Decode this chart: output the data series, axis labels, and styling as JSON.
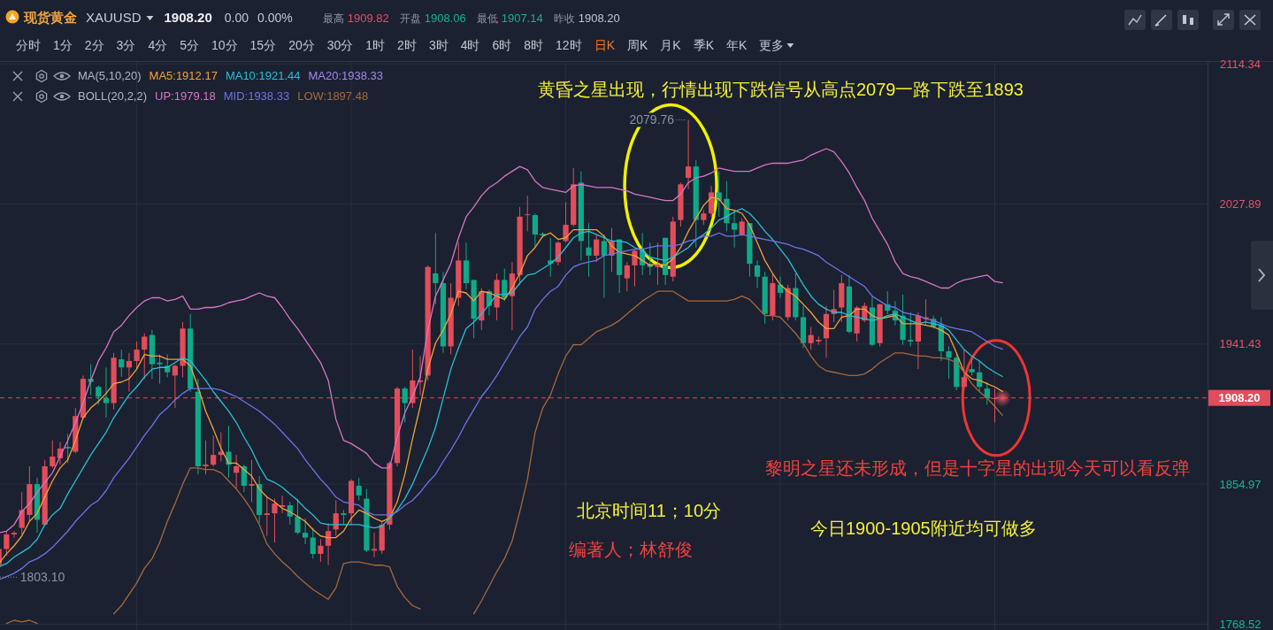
{
  "chart_data": {
    "type": "candlestick",
    "title": "现货黄金",
    "subtitle": "XAUUSD",
    "categories": [
      null,
      null,
      null,
      null,
      null,
      null,
      null,
      null,
      null,
      null,
      null,
      null,
      null,
      null,
      null,
      null,
      null,
      null,
      null,
      null,
      null,
      null,
      null,
      null,
      null,
      null,
      null,
      null,
      null,
      null,
      null,
      null,
      null,
      null,
      null,
      null,
      null,
      null,
      null,
      null,
      null,
      null,
      null,
      null,
      null,
      null,
      null,
      null,
      null,
      null,
      null,
      null,
      null,
      null,
      null,
      null,
      null,
      null,
      null,
      null,
      null,
      null,
      null,
      null,
      null,
      null,
      null,
      null,
      null,
      null,
      null,
      null,
      null,
      null,
      null,
      null,
      null,
      null,
      null,
      null,
      null,
      null,
      null,
      null,
      null,
      null,
      null,
      null,
      null,
      null,
      null,
      null,
      null,
      null,
      null,
      null,
      null,
      null,
      null,
      null,
      null,
      null,
      null,
      null,
      null,
      null,
      null,
      null,
      null,
      null,
      null,
      null,
      null,
      null,
      null,
      null,
      null,
      null,
      null,
      null,
      null,
      null,
      null,
      null,
      null,
      null,
      null,
      null,
      null,
      null,
      null,
      null
    ],
    "ohlc": [
      [
        1805,
        1816,
        1803.1,
        1815
      ],
      [
        1815,
        1826,
        1811,
        1824
      ],
      [
        1824,
        1826,
        1822,
        1825
      ],
      [
        1828,
        1850,
        1824,
        1839
      ],
      [
        1836,
        1866,
        1832,
        1855
      ],
      [
        1855,
        1859,
        1825,
        1833
      ],
      [
        1830,
        1870,
        1829,
        1866
      ],
      [
        1866,
        1882,
        1865,
        1872
      ],
      [
        1871,
        1881,
        1867,
        1877
      ],
      [
        1878,
        1886,
        1868,
        1877
      ],
      [
        1875,
        1902,
        1874,
        1897
      ],
      [
        1896,
        1922,
        1895,
        1920
      ],
      [
        1920,
        1929,
        1910,
        1918
      ],
      [
        1915,
        1916,
        1904,
        1909
      ],
      [
        1908,
        1927,
        1896,
        1905
      ],
      [
        1905,
        1936,
        1901,
        1933
      ],
      [
        1932,
        1938,
        1921,
        1927
      ],
      [
        1927,
        1936,
        1912,
        1931
      ],
      [
        1931,
        1943,
        1926,
        1938
      ],
      [
        1938,
        1948,
        1920,
        1946
      ],
      [
        1947,
        1950,
        1920,
        1929
      ],
      [
        1930,
        1935,
        1917,
        1929
      ],
      [
        1928,
        1935,
        1921,
        1924
      ],
      [
        1922,
        1929,
        1902,
        1928
      ],
      [
        1928,
        1955,
        1921,
        1951
      ],
      [
        1951,
        1960,
        1912,
        1914
      ],
      [
        1912,
        1920,
        1861,
        1866
      ],
      [
        1866,
        1882,
        1861,
        1867
      ],
      [
        1867,
        1885,
        1866,
        1873
      ],
      [
        1873,
        1887,
        1869,
        1875
      ],
      [
        1875,
        1891,
        1859,
        1867
      ],
      [
        1862,
        1873,
        1852,
        1866
      ],
      [
        1866,
        1867,
        1850,
        1854
      ],
      [
        1854,
        1870,
        1844,
        1855
      ],
      [
        1855,
        1860,
        1831,
        1836
      ],
      [
        1836,
        1847,
        1823,
        1837
      ],
      [
        1837,
        1846,
        1819,
        1843
      ],
      [
        1841,
        1848,
        1837,
        1842
      ],
      [
        1842,
        1844,
        1830,
        1835
      ],
      [
        1835,
        1846,
        1824,
        1825
      ],
      [
        1825,
        1834,
        1818,
        1822
      ],
      [
        1822,
        1828,
        1809,
        1812
      ],
      [
        1812,
        1821,
        1807,
        1817
      ],
      [
        1817,
        1831,
        1805,
        1826
      ],
      [
        1827,
        1845,
        1823,
        1837
      ],
      [
        1837,
        1839,
        1830,
        1836
      ],
      [
        1837,
        1858,
        1830,
        1857
      ],
      [
        1854,
        1859,
        1845,
        1848
      ],
      [
        1846,
        1852,
        1813,
        1814
      ],
      [
        1814,
        1825,
        1810,
        1815
      ],
      [
        1814,
        1832,
        1812,
        1830
      ],
      [
        1830,
        1869,
        1827,
        1868
      ],
      [
        1868,
        1915,
        1866,
        1914
      ],
      [
        1914,
        1915,
        1893,
        1905
      ],
      [
        1905,
        1938,
        1902,
        1919
      ],
      [
        1918,
        1934,
        1910,
        1919
      ],
      [
        1922,
        1990,
        1919,
        1989
      ],
      [
        1985,
        2010,
        1966,
        1979
      ],
      [
        1979,
        1986,
        1936,
        1940
      ],
      [
        1940,
        1979,
        1935,
        1970
      ],
      [
        1970,
        2004,
        1965,
        1993
      ],
      [
        1993,
        2004,
        1975,
        1979
      ],
      [
        1981,
        1981,
        1945,
        1957
      ],
      [
        1956,
        1976,
        1950,
        1974
      ],
      [
        1974,
        1975,
        1959,
        1965
      ],
      [
        1964,
        1985,
        1956,
        1981
      ],
      [
        1981,
        1988,
        1968,
        1970
      ],
      [
        1971,
        1992,
        1950,
        1985
      ],
      [
        1984,
        2026,
        1978,
        2020
      ],
      [
        2021,
        2033,
        2011,
        2021.5
      ],
      [
        2021,
        2022,
        2001,
        2009
      ],
      [
        2009.5,
        2010.5,
        2007,
        2008.5
      ],
      [
        1993,
        2007,
        1983,
        1991
      ],
      [
        1992,
        2005,
        1990,
        2004
      ],
      [
        2005,
        2029,
        2004,
        2015
      ],
      [
        2015,
        2050,
        2014,
        2040
      ],
      [
        2041,
        2048,
        1993,
        2005
      ],
      [
        2001,
        2016,
        1983,
        1996
      ],
      [
        1996,
        2009,
        1992,
        2006
      ],
      [
        2005,
        2009,
        1970,
        1996
      ],
      [
        1996,
        2013,
        1986,
        2005
      ],
      [
        2006,
        2006,
        1973,
        1984
      ],
      [
        1982,
        1992,
        1974,
        1990
      ],
      [
        1990,
        2000,
        1977,
        1999
      ],
      [
        1999,
        2010,
        1984,
        1990
      ],
      [
        1991,
        2004,
        1984,
        1989
      ],
      [
        1989,
        2004,
        1978,
        1991
      ],
      [
        2007,
        2007,
        1978,
        1984
      ],
      [
        1983,
        2020,
        1980,
        2017
      ],
      [
        2018,
        2041,
        2014,
        2040
      ],
      [
        2044,
        2079.76,
        2037,
        2051
      ],
      [
        2051,
        2055,
        2001,
        2018
      ],
      [
        2018,
        2024,
        2015,
        2022
      ],
      [
        2022,
        2039,
        2020,
        2035
      ],
      [
        2035,
        2048,
        2020,
        2030
      ],
      [
        2031,
        2042,
        2011,
        2016
      ],
      [
        2016,
        2024,
        2001,
        2012
      ],
      [
        2009,
        2019,
        2008,
        2017
      ],
      [
        2016,
        2016,
        1983,
        1991
      ],
      [
        1990,
        1993,
        1976,
        1983
      ],
      [
        1983,
        1986,
        1954,
        1960
      ],
      [
        1959,
        1985,
        1956,
        1979
      ],
      [
        1978,
        1983,
        1970,
        1973
      ],
      [
        1958,
        1978,
        1956,
        1976
      ],
      [
        1976,
        1985,
        1956,
        1958
      ],
      [
        1958,
        1965,
        1939,
        1942
      ],
      [
        1942,
        1952,
        1938,
        1947
      ],
      [
        1943,
        1946,
        1941,
        1944
      ],
      [
        1945,
        1965,
        1933,
        1960
      ],
      [
        1960,
        1975,
        1955,
        1963
      ],
      [
        1964,
        1984,
        1955,
        1979
      ],
      [
        1977,
        1984,
        1948,
        1949
      ],
      [
        1948,
        1965,
        1943,
        1964
      ],
      [
        1956,
        1967,
        1955,
        1965
      ],
      [
        1964,
        1971,
        1940,
        1941
      ],
      [
        1942,
        1966,
        1940,
        1966
      ],
      [
        1966,
        1974,
        1960,
        1962
      ],
      [
        1962,
        1968,
        1953,
        1956
      ],
      [
        1959,
        1972,
        1941,
        1944
      ],
      [
        1944,
        1961,
        1940,
        1943
      ],
      [
        1943,
        1961,
        1926,
        1959
      ],
      [
        1957,
        1969,
        1953,
        1958
      ],
      [
        1957,
        1959,
        1951,
        1952
      ],
      [
        1953,
        1958,
        1931,
        1937
      ],
      [
        1937,
        1940,
        1920,
        1933
      ],
      [
        1933,
        1935,
        1913,
        1915
      ],
      [
        1915,
        1938,
        1913,
        1921
      ],
      [
        1926,
        1934,
        1922,
        1924
      ],
      [
        1924,
        1931,
        1912,
        1915
      ],
      [
        1914,
        1918,
        1904,
        1908
      ],
      [
        1907.5,
        1914,
        1893,
        1908.2
      ],
      [
        1908.06,
        1909.82,
        1907.14,
        1908.2
      ]
    ],
    "colors": [
      "#e34d5b",
      "#e34d5b",
      "#e34d5b",
      "#e34d5b",
      "#e34d5b",
      "#0fa98a",
      "#e34d5b",
      "#e34d5b",
      "#e34d5b",
      "#0fa98a",
      "#e34d5b",
      "#e34d5b",
      "#0fa98a",
      "#0fa98a",
      "#0fa98a",
      "#e34d5b",
      "#0fa98a",
      "#e34d5b",
      "#e34d5b",
      "#e34d5b",
      "#0fa98a",
      "#0fa98a",
      "#0fa98a",
      "#e34d5b",
      "#e34d5b",
      "#0fa98a",
      "#0fa98a",
      "#e34d5b",
      "#e34d5b",
      "#e34d5b",
      "#0fa98a",
      "#e34d5b",
      "#0fa98a",
      "#e34d5b",
      "#0fa98a",
      "#e34d5b",
      "#e34d5b",
      "#e34d5b",
      "#0fa98a",
      "#0fa98a",
      "#0fa98a",
      "#0fa98a",
      "#e34d5b",
      "#e34d5b",
      "#e34d5b",
      "#0fa98a",
      "#e34d5b",
      "#0fa98a",
      "#0fa98a",
      "#e34d5b",
      "#e34d5b",
      "#e34d5b",
      "#e34d5b",
      "#0fa98a",
      "#e34d5b",
      "#e34d5b",
      "#e34d5b",
      "#0fa98a",
      "#0fa98a",
      "#e34d5b",
      "#e34d5b",
      "#0fa98a",
      "#0fa98a",
      "#e34d5b",
      "#0fa98a",
      "#e34d5b",
      "#0fa98a",
      "#e34d5b",
      "#e34d5b",
      "#e34d5b",
      "#0fa98a",
      "#0fa98a",
      "#0fa98a",
      "#e34d5b",
      "#e34d5b",
      "#e34d5b",
      "#0fa98a",
      "#0fa98a",
      "#e34d5b",
      "#0fa98a",
      "#e34d5b",
      "#0fa98a",
      "#e34d5b",
      "#e34d5b",
      "#0fa98a",
      "#0fa98a",
      "#e34d5b",
      "#0fa98a",
      "#e34d5b",
      "#e34d5b",
      "#e34d5b",
      "#0fa98a",
      "#e34d5b",
      "#e34d5b",
      "#0fa98a",
      "#0fa98a",
      "#0fa98a",
      "#e34d5b",
      "#0fa98a",
      "#0fa98a",
      "#0fa98a",
      "#e34d5b",
      "#0fa98a",
      "#e34d5b",
      "#0fa98a",
      "#0fa98a",
      "#e34d5b",
      "#e34d5b",
      "#e34d5b",
      "#e34d5b",
      "#e34d5b",
      "#0fa98a",
      "#e34d5b",
      "#e34d5b",
      "#0fa98a",
      "#e34d5b",
      "#0fa98a",
      "#0fa98a",
      "#0fa98a",
      "#0fa98a",
      "#e34d5b",
      "#e34d5b",
      "#0fa98a",
      "#0fa98a",
      "#0fa98a",
      "#0fa98a",
      "#e34d5b",
      "#0fa98a",
      "#0fa98a",
      "#0fa98a",
      "#e34d5b",
      "#e34d5b"
    ],
    "series": [
      {
        "type": "line",
        "name": "MA5:1912.17",
        "color": "#f5a038",
        "values": [
          1806,
          1812,
          1817,
          1823,
          1832,
          1837,
          1847,
          1857,
          1865,
          1870,
          1882,
          1896,
          1902,
          1906,
          1911,
          1917,
          1918,
          1920,
          1926,
          1935,
          1934,
          1934,
          1932,
          1932,
          1932,
          1928,
          1915,
          1900,
          1889,
          1877,
          1868,
          1868,
          1864,
          1860,
          1852,
          1847,
          1844,
          1840,
          1838,
          1835,
          1832,
          1827,
          1823,
          1822,
          1822,
          1826,
          1834,
          1839,
          1837,
          1834,
          1832,
          1834,
          1844,
          1861,
          1883,
          1903,
          1926,
          1942,
          1950,
          1960,
          1974,
          1973,
          1968,
          1974,
          1973,
          1971,
          1969,
          1976,
          1985,
          1996,
          2001,
          2008,
          2010,
          2006,
          2007,
          2012,
          2012,
          2012,
          2012,
          2008,
          2002,
          1998,
          1997,
          1996,
          1993,
          1990,
          1991,
          1990,
          1994,
          2001,
          2011,
          2019,
          2027,
          2032,
          2031,
          2025,
          2024,
          2022,
          2015,
          2004,
          1993,
          1985,
          1978,
          1974,
          1971,
          1966,
          1961,
          1955,
          1951,
          1951,
          1958,
          1959,
          1963,
          1963,
          1959,
          1957,
          1958,
          1959,
          1954,
          1954,
          1954,
          1953,
          1952,
          1950,
          1947,
          1936,
          1924,
          1920,
          1919,
          1917,
          1915,
          1912.17
        ]
      },
      {
        "type": "line",
        "name": "MA10:1921.44",
        "color": "#29bfd6",
        "values": [
          1804,
          1806,
          1810,
          1813,
          1816,
          1821,
          1830,
          1836,
          1840,
          1849,
          1857,
          1865,
          1873,
          1880,
          1887,
          1896,
          1903,
          1910,
          1915,
          1921,
          1926,
          1927,
          1927,
          1930,
          1933,
          1931,
          1925,
          1919,
          1912,
          1906,
          1900,
          1893,
          1884,
          1876,
          1866,
          1858,
          1856,
          1853,
          1849,
          1845,
          1840,
          1836,
          1831,
          1830,
          1830,
          1830,
          1830,
          1830,
          1829,
          1828,
          1829,
          1834,
          1839,
          1846,
          1855,
          1866,
          1877,
          1890,
          1908,
          1926,
          1939,
          1951,
          1955,
          1960,
          1966,
          1972,
          1972,
          1973,
          1979,
          1984,
          1985,
          1988,
          1991,
          1995,
          2001,
          2007,
          2010,
          2011,
          2009,
          2007,
          2005,
          2005,
          2004,
          2001,
          1999,
          1995,
          1994,
          1993,
          1995,
          1998,
          2001,
          2006,
          2009,
          2013,
          2018,
          2020,
          2023,
          2025,
          2022,
          2017,
          2011,
          2006,
          2000,
          1994,
          1986,
          1978,
          1971,
          1966,
          1963,
          1961,
          1961,
          1959,
          1958,
          1957,
          1956,
          1957,
          1959,
          1960,
          1958,
          1956,
          1954,
          1955,
          1954,
          1953,
          1950,
          1944,
          1938,
          1934,
          1931,
          1927,
          1924,
          1921.44
        ]
      },
      {
        "type": "line",
        "name": "UP:1979.18",
        "color": "#d874c9",
        "values": [
          1825,
          1826,
          1830,
          1838,
          1843,
          1850,
          1856,
          1862,
          1872,
          1882,
          1893,
          1905,
          1919,
          1931,
          1939,
          1949,
          1953,
          1959,
          1964,
          1968,
          1970,
          1970,
          1968,
          1969,
          1971,
          1963,
          1963,
          1964,
          1964,
          1965,
          1967,
          1968,
          1969,
          1971,
          1973,
          1971,
          1970,
          1964,
          1957,
          1951,
          1944,
          1937,
          1930,
          1919,
          1895,
          1882,
          1880,
          1877,
          1874,
          1868,
          1865,
          1865,
          1884,
          1899,
          1909,
          1921,
          1950,
          1971,
          1981,
          1991,
          2007,
          2020,
          2026,
          2033,
          2038,
          2041,
          2045,
          2048,
          2051,
          2049,
          2042,
          2038,
          2037,
          2036,
          2035,
          2039,
          2040,
          2039,
          2038,
          2038,
          2038,
          2037,
          2036,
          2034,
          2033,
          2032,
          2031,
          2030,
          2030,
          2034,
          2041,
          2044,
          2045,
          2047,
          2050,
          2049,
          2048,
          2048,
          2048,
          2050,
          2052,
          2053,
          2053,
          2053,
          2054,
          2055,
          2058,
          2060,
          2062,
          2060,
          2054,
          2047,
          2038,
          2030,
          2019,
          2011,
          2003,
          1992,
          1985,
          1983,
          1982,
          1980,
          1978,
          1976,
          1976,
          1979,
          1981,
          1982,
          1983,
          1984,
          1980,
          1979.18
        ]
      },
      {
        "type": "line",
        "name": "MID:1938.33",
        "color": "#6c74e8",
        "values": [
          1796,
          1798,
          1800,
          1803,
          1807,
          1809,
          1812,
          1816,
          1821,
          1826,
          1832,
          1837,
          1842,
          1845,
          1851,
          1859,
          1865,
          1871,
          1878,
          1885,
          1891,
          1898,
          1902,
          1907,
          1911,
          1914,
          1914,
          1914,
          1914,
          1913,
          1911,
          1909,
          1906,
          1903,
          1900,
          1896,
          1892,
          1887,
          1882,
          1877,
          1870,
          1864,
          1858,
          1853,
          1847,
          1844,
          1843,
          1842,
          1838,
          1836,
          1836,
          1836,
          1838,
          1842,
          1845,
          1850,
          1856,
          1861,
          1869,
          1876,
          1884,
          1893,
          1901,
          1909,
          1915,
          1922,
          1930,
          1938,
          1946,
          1952,
          1963,
          1969,
          1974,
          1977,
          1984,
          1989,
          1991,
          1992,
          1993,
          1996,
          1997,
          1998,
          1999,
          2000,
          2000,
          2001,
          2002,
          2002,
          2002,
          2003,
          2005,
          2006,
          2008,
          2008,
          2010,
          2008,
          2008,
          2009,
          2008,
          2007,
          2006,
          2005,
          2004,
          2003,
          2001,
          2000,
          1998,
          1996,
          1992,
          1989,
          1986,
          1983,
          1980,
          1977,
          1971,
          1968,
          1965,
          1964,
          1961,
          1960,
          1959,
          1957,
          1956,
          1954,
          1952,
          1951,
          1950,
          1949,
          1946,
          1943,
          1940,
          1938.33
        ]
      },
      {
        "type": "line",
        "name": "LOW:1897.48",
        "color": "#a8683c",
        "values": [
          null,
          1769,
          1771,
          1770,
          1771,
          1769,
          null,
          null,
          null,
          null,
          null,
          null,
          null,
          null,
          null,
          1775,
          1780,
          1787,
          1794,
          1803,
          1809,
          1819,
          1832,
          1843,
          1855,
          1865,
          1865,
          1864,
          1864,
          1862,
          1857,
          1852,
          1846,
          1839,
          1830,
          1818,
          1812,
          1807,
          1803,
          1798,
          1794,
          1790,
          1787,
          1784,
          1791,
          1806,
          1807,
          1807,
          1806,
          1805,
          1805,
          1804,
          1792,
          1785,
          1780,
          1778,
          null,
          null,
          null,
          null,
          null,
          null,
          1775,
          1783,
          1792,
          1801,
          1809,
          1820,
          1838,
          1858,
          1887,
          1902,
          1910,
          1923,
          1934,
          1941,
          1941,
          1945,
          1949,
          1951,
          1953,
          1956,
          1960,
          1964,
          1968,
          1971,
          1974,
          1974,
          1974,
          1971,
          1968,
          1968,
          1968,
          1968,
          1968,
          1968,
          1969,
          1971,
          1969,
          1964,
          1959,
          1959,
          1958,
          1953,
          1948,
          1942,
          1934,
          1928,
          1925,
          1924,
          1923,
          1922,
          1922,
          1923,
          1926,
          1930,
          1933,
          1936,
          1936,
          1935,
          1934,
          1934,
          1933,
          1933,
          1932,
          1930,
          1924,
          1917,
          1912,
          1908,
          1903,
          1897.48
        ]
      }
    ],
    "ylim": [
      1765,
      2115.5
    ],
    "yticks": [
      1768.52,
      1854.97,
      {
        "value": 1908.2,
        "label": "1908.20"
      },
      1941.43,
      2027.89,
      2114.34
    ],
    "ref_lines": [
      {
        "axis": "y",
        "value": 1908.2,
        "color": "#e34d5b",
        "line_style": "dashed"
      }
    ],
    "grid": true,
    "legend": "top left",
    "tick_labels": "y",
    "annotations": [
      "黄昏之星出现，行情出现下跌信号从高点2079一路下跌至1893",
      "黎明之星还未形成，但是十字星的出现今天可以看反弹",
      "北京时间11；10分",
      "今日1900-1905附近均可做多",
      "编著人；林舒俊",
      "2079.76",
      "1803.10",
      "MA(5,10,20)",
      "MA20:1938.33",
      "BOLL(20,2,2)",
      "1908.20",
      "0.00",
      "0.00%",
      "最高",
      "1909.82",
      "开盘",
      "1908.06",
      "最低",
      "1907.14",
      "昨收",
      "1908.20",
      "分时",
      "1分",
      "2分",
      "3分",
      "4分",
      "5分",
      "10分",
      "15分",
      "20分",
      "30分",
      "1时",
      "2时",
      "3时",
      "4时",
      "6时",
      "8时",
      "12时",
      "日K",
      "周K",
      "月K",
      "季K",
      "年K",
      "更多"
    ]
  }
}
